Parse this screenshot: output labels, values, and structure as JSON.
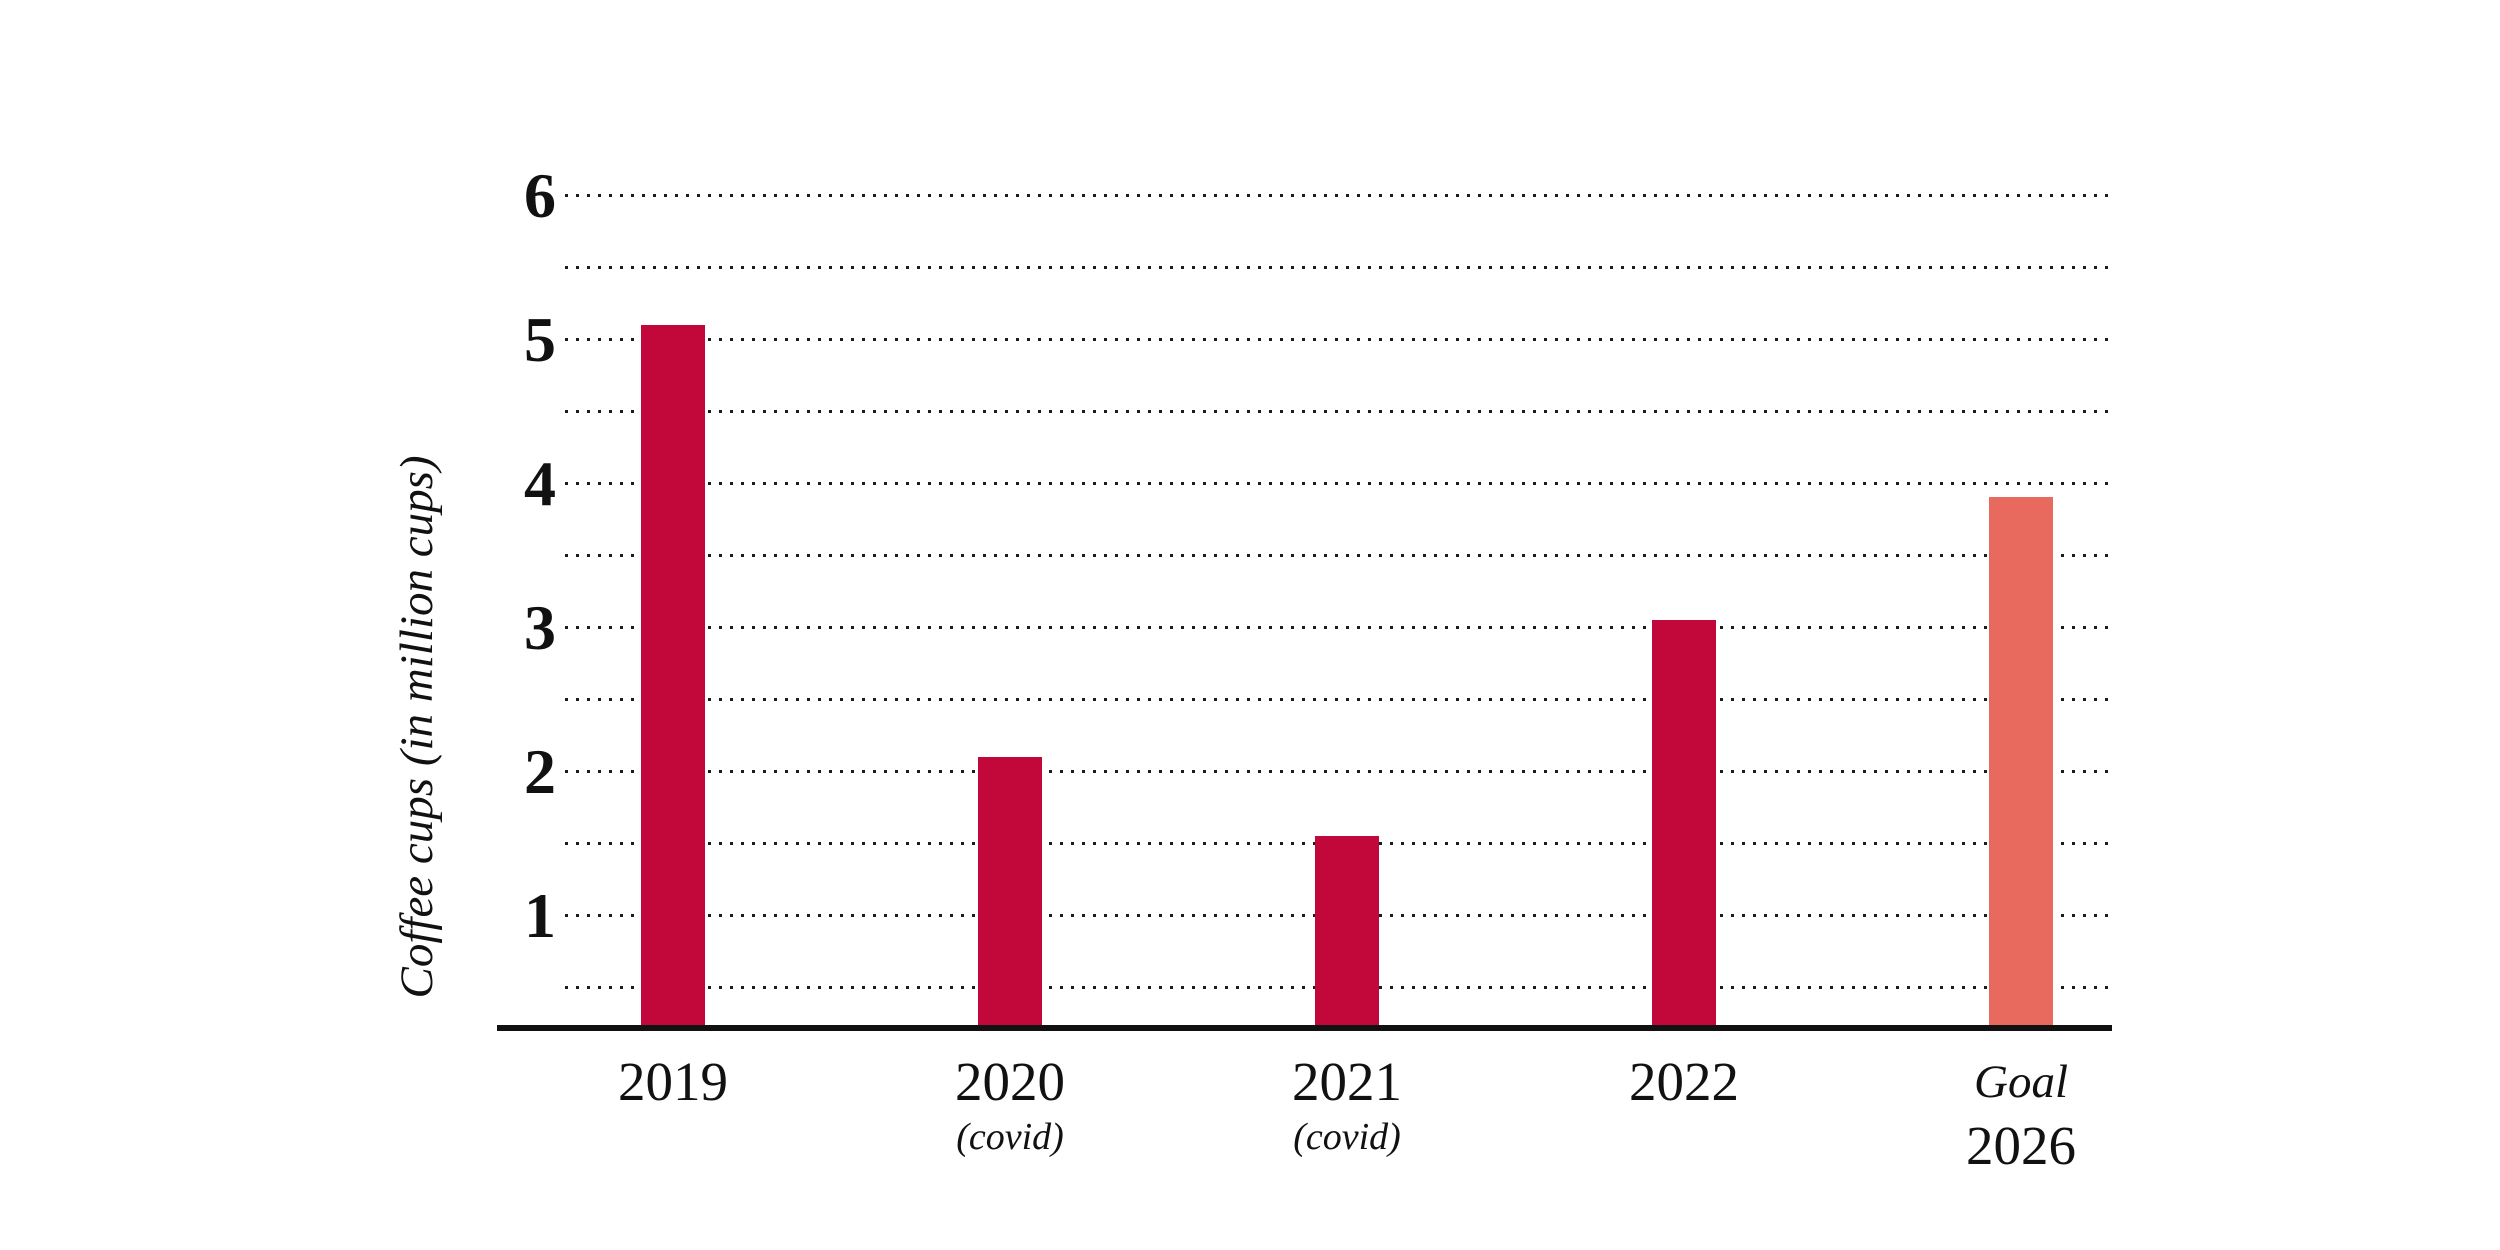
{
  "chart_data": {
    "type": "bar",
    "title": "",
    "ylabel": "Coffee cups (in million cups)",
    "xlabel": "",
    "categories": [
      "2019",
      "2020",
      "2021",
      "2022",
      "Goal 2026"
    ],
    "values": [
      5.1,
      2.1,
      1.55,
      3.05,
      3.9
    ],
    "bars": [
      {
        "label": "2019",
        "label_style": "year",
        "sublabel": "",
        "sublabel_style": "",
        "value": 5.1,
        "color": "#c2073b"
      },
      {
        "label": "2020",
        "label_style": "year",
        "sublabel": "(covid)",
        "sublabel_style": "covid",
        "value": 2.1,
        "color": "#c2073b"
      },
      {
        "label": "2021",
        "label_style": "year",
        "sublabel": "(covid)",
        "sublabel_style": "covid",
        "value": 1.55,
        "color": "#c2073b"
      },
      {
        "label": "2022",
        "label_style": "year",
        "sublabel": "",
        "sublabel_style": "",
        "value": 3.05,
        "color": "#c2073b"
      },
      {
        "label": "Goal",
        "label_style": "goal",
        "sublabel": "2026",
        "sublabel_style": "year",
        "value": 3.9,
        "color": "#e8695e"
      }
    ],
    "y_ticks": [
      6,
      5,
      4,
      3,
      2,
      1
    ],
    "minor_gridline_step": 0.5,
    "gridline_min": 0.5,
    "gridline_max": 6,
    "ylim": [
      0,
      6.5
    ],
    "grid": "horizontal-dotted",
    "legend_position": "none",
    "colors": {
      "bar_primary": "#c2073b",
      "bar_goal": "#e8695e",
      "axis": "#111111",
      "gridline": "#1c1c1c",
      "text": "#111111"
    }
  }
}
